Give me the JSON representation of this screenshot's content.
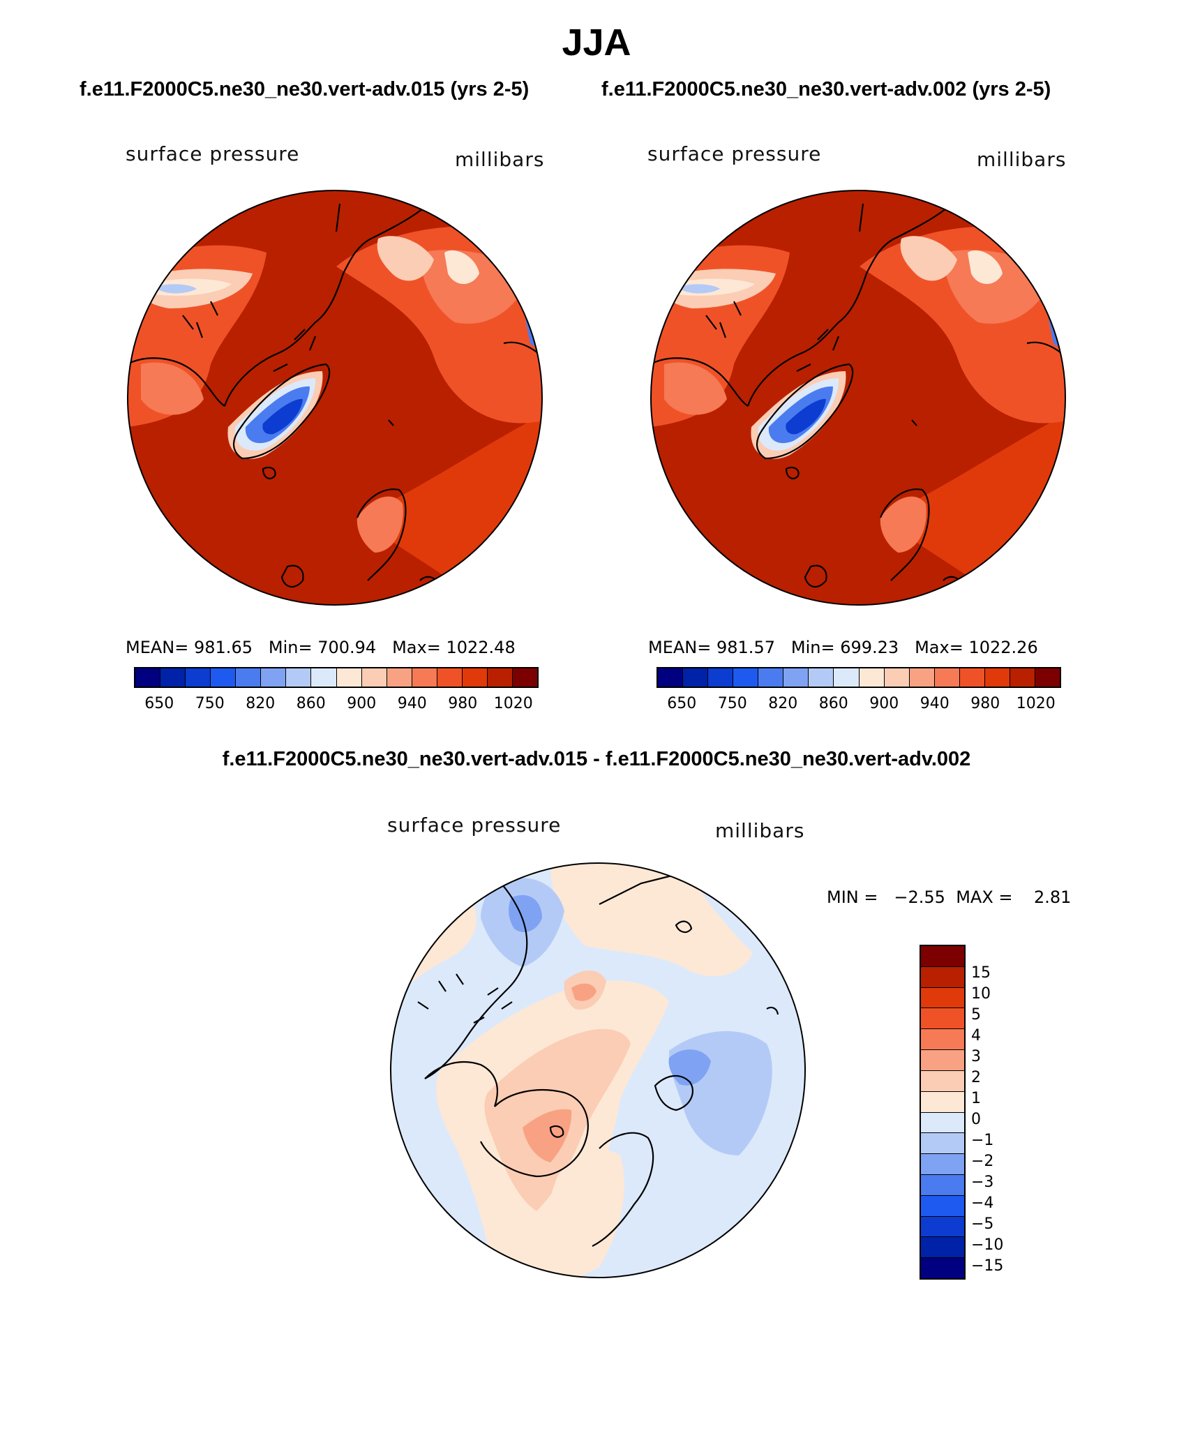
{
  "title": "JJA",
  "panels": [
    {
      "case_title": "f.e11.F2000C5.ne30_ne30.vert-adv.015 (yrs 2-5)",
      "variable": "surface pressure",
      "units": "millibars",
      "stats": {
        "mean_label": "MEAN=",
        "mean": "981.65",
        "min_label": "Min=",
        "min": "700.94",
        "max_label": "Max=",
        "max": "1022.48"
      }
    },
    {
      "case_title": "f.e11.F2000C5.ne30_ne30.vert-adv.002 (yrs 2-5)",
      "variable": "surface pressure",
      "units": "millibars",
      "stats": {
        "mean_label": "MEAN=",
        "mean": "981.57",
        "min_label": "Min=",
        "min": "699.23",
        "max_label": "Max=",
        "max": "1022.26"
      }
    }
  ],
  "abs_colorbar": {
    "colors": [
      "#000080",
      "#0022a8",
      "#0c3cd0",
      "#1f5af0",
      "#4a7cf0",
      "#7fa3f2",
      "#b4caf6",
      "#dce9fb",
      "#fde8d6",
      "#fbcdb4",
      "#f8a283",
      "#f57a55",
      "#f05228",
      "#e03a0a",
      "#b92000",
      "#7c0000"
    ],
    "tick_labels": [
      "650",
      "750",
      "820",
      "860",
      "900",
      "940",
      "980",
      "1020"
    ]
  },
  "difference": {
    "title": "f.e11.F2000C5.ne30_ne30.vert-adv.015 - f.e11.F2000C5.ne30_ne30.vert-adv.002",
    "variable": "surface pressure",
    "units": "millibars",
    "min_label": "MIN =",
    "min": "−2.55",
    "max_label": "MAX =",
    "max": "2.81"
  },
  "diff_colorbar": {
    "colors": [
      "#7c0000",
      "#b92000",
      "#e03a0a",
      "#f05228",
      "#f57a55",
      "#f8a283",
      "#fbcdb4",
      "#fde8d6",
      "#dce9fb",
      "#b4caf6",
      "#7fa3f2",
      "#4a7cf0",
      "#1f5af0",
      "#0c3cd0",
      "#0022a8",
      "#000080"
    ],
    "tick_labels": [
      "15",
      "10",
      "5",
      "4",
      "3",
      "2",
      "1",
      "0",
      "−1",
      "−2",
      "−3",
      "−4",
      "−5",
      "−10",
      "−15"
    ]
  },
  "map_colors": {
    "ocean_high": "#b92000",
    "ocean_mid": "#e03a0a",
    "land_mid": "#f05228",
    "land_low": "#f57a55",
    "land_pale": "#fbcdb4",
    "land_cream": "#fde8d6",
    "light_blue": "#dce9fb",
    "blue_lo": "#b4caf6",
    "blue_mid": "#4a7cf0",
    "blue_deep": "#0c3cd0",
    "darkest": "#7c0000",
    "diff_pos1": "#fde8d6",
    "diff_pos2": "#fbcdb4",
    "diff_pos3": "#f8a283",
    "diff_neg1": "#dce9fb",
    "diff_neg2": "#b4caf6",
    "diff_neg3": "#7fa3f2"
  }
}
